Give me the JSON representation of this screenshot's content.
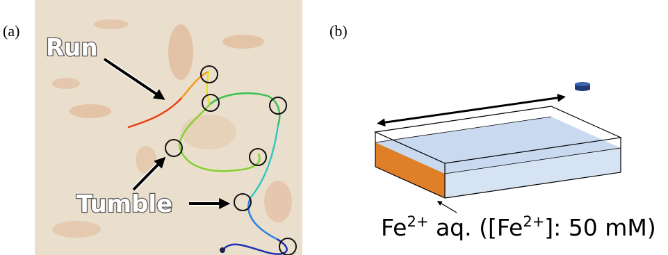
{
  "panels": [
    {
      "label": "(a)",
      "annotations": [
        "Run",
        "Tumble"
      ]
    },
    {
      "label": "(b)",
      "solution_label": [
        "Fe",
        "2+",
        " aq. ([Fe",
        "2+",
        "]: 50 mM)"
      ]
    }
  ]
}
